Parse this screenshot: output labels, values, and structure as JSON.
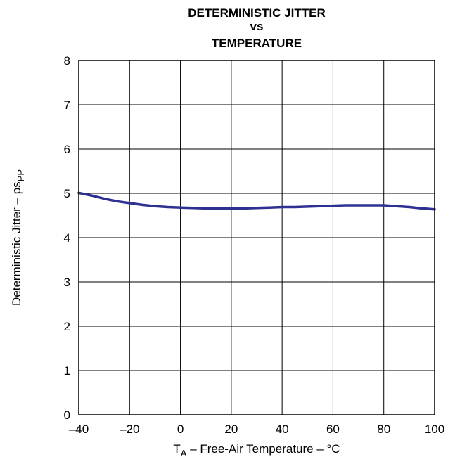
{
  "chart_data": {
    "type": "line",
    "title_lines": [
      "DETERMINISTIC JITTER",
      "vs",
      "TEMPERATURE"
    ],
    "xlabel": {
      "main": "T",
      "sub": "A",
      "rest": " – Free-Air Temperature – °C"
    },
    "ylabel": {
      "main": "Deterministic Jitter – ps",
      "sub": "PP"
    },
    "xlim": [
      -40,
      100
    ],
    "ylim": [
      0,
      8
    ],
    "x_ticks": [
      -40,
      -20,
      0,
      20,
      40,
      60,
      80,
      100
    ],
    "x_tick_labels": [
      "–40",
      "–20",
      "0",
      "20",
      "40",
      "60",
      "80",
      "100"
    ],
    "x_grid": [
      -40,
      -20,
      0,
      20,
      40,
      60,
      80,
      100
    ],
    "y_ticks": [
      0,
      1,
      2,
      3,
      4,
      5,
      6,
      7,
      8
    ],
    "y_tick_labels": [
      "0",
      "1",
      "2",
      "3",
      "4",
      "5",
      "6",
      "7",
      "8"
    ],
    "grid": true,
    "series": [
      {
        "color": "#2e3192",
        "x": [
          -40,
          -35,
          -30,
          -25,
          -20,
          -15,
          -10,
          -5,
          0,
          5,
          10,
          15,
          20,
          25,
          30,
          35,
          40,
          45,
          50,
          55,
          60,
          65,
          70,
          75,
          80,
          85,
          90,
          95,
          100
        ],
        "y": [
          5.01,
          4.95,
          4.88,
          4.82,
          4.78,
          4.74,
          4.71,
          4.69,
          4.68,
          4.67,
          4.66,
          4.66,
          4.66,
          4.66,
          4.67,
          4.68,
          4.69,
          4.69,
          4.7,
          4.71,
          4.72,
          4.73,
          4.73,
          4.73,
          4.73,
          4.71,
          4.69,
          4.66,
          4.64
        ]
      }
    ]
  }
}
